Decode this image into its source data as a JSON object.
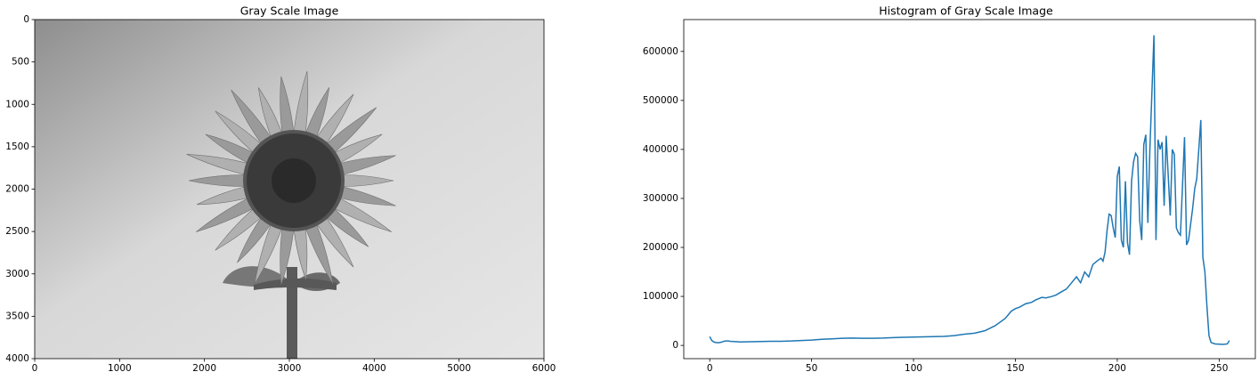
{
  "chart_data": [
    {
      "type": "image",
      "title": "Gray Scale Image",
      "xlim": [
        0,
        6000
      ],
      "ylim": [
        4000,
        0
      ],
      "xticks": [
        0,
        1000,
        2000,
        3000,
        4000,
        5000,
        6000
      ],
      "yticks": [
        0,
        500,
        1000,
        1500,
        2000,
        2500,
        3000,
        3500,
        4000
      ]
    },
    {
      "type": "line",
      "title": "Histogram of Gray Scale Image",
      "color": "#1f77b4",
      "x": [
        0,
        1,
        2,
        3,
        4,
        5,
        6,
        7,
        8,
        9,
        10,
        15,
        20,
        25,
        30,
        35,
        40,
        45,
        50,
        55,
        60,
        65,
        70,
        75,
        80,
        85,
        90,
        95,
        100,
        105,
        110,
        115,
        120,
        125,
        130,
        135,
        140,
        145,
        148,
        150,
        152,
        155,
        158,
        160,
        163,
        165,
        168,
        170,
        172,
        175,
        178,
        180,
        182,
        184,
        186,
        188,
        190,
        192,
        193,
        194,
        195,
        196,
        197,
        198,
        199,
        200,
        201,
        202,
        203,
        204,
        205,
        206,
        207,
        208,
        209,
        210,
        211,
        212,
        213,
        214,
        215,
        216,
        218,
        219,
        220,
        221,
        222,
        223,
        224,
        226,
        227,
        228,
        229,
        230,
        231,
        233,
        234,
        235,
        237,
        238,
        239,
        241,
        242,
        243,
        244,
        245,
        246,
        248,
        252,
        254,
        255
      ],
      "values": [
        18000,
        10000,
        7000,
        6000,
        5500,
        6000,
        7000,
        8500,
        9000,
        9000,
        8500,
        7000,
        7500,
        8000,
        8500,
        8500,
        9000,
        10000,
        11000,
        12500,
        13500,
        14500,
        15000,
        14500,
        14500,
        15000,
        16000,
        16500,
        17000,
        17500,
        18000,
        18500,
        20000,
        23000,
        25000,
        30000,
        40000,
        55000,
        70000,
        75000,
        78000,
        85000,
        88000,
        93000,
        98000,
        97000,
        100000,
        103000,
        108000,
        115000,
        130000,
        140000,
        128000,
        150000,
        140000,
        165000,
        172000,
        178000,
        172000,
        190000,
        235000,
        268000,
        265000,
        240000,
        220000,
        345000,
        365000,
        215000,
        200000,
        335000,
        210000,
        185000,
        335000,
        375000,
        392000,
        385000,
        255000,
        215000,
        410000,
        430000,
        250000,
        400000,
        633000,
        215000,
        420000,
        400000,
        415000,
        285000,
        428000,
        265000,
        400000,
        390000,
        240000,
        230000,
        225000,
        425000,
        205000,
        215000,
        280000,
        320000,
        340000,
        460000,
        180000,
        150000,
        80000,
        20000,
        6000,
        3000,
        2000,
        3000,
        10000
      ],
      "xlim": [
        -12.75,
        267.75
      ],
      "ylim": [
        -27000,
        665000
      ],
      "xticks": [
        0,
        50,
        100,
        150,
        200,
        250
      ],
      "yticks": [
        0,
        100000,
        200000,
        300000,
        400000,
        500000,
        600000
      ]
    }
  ]
}
